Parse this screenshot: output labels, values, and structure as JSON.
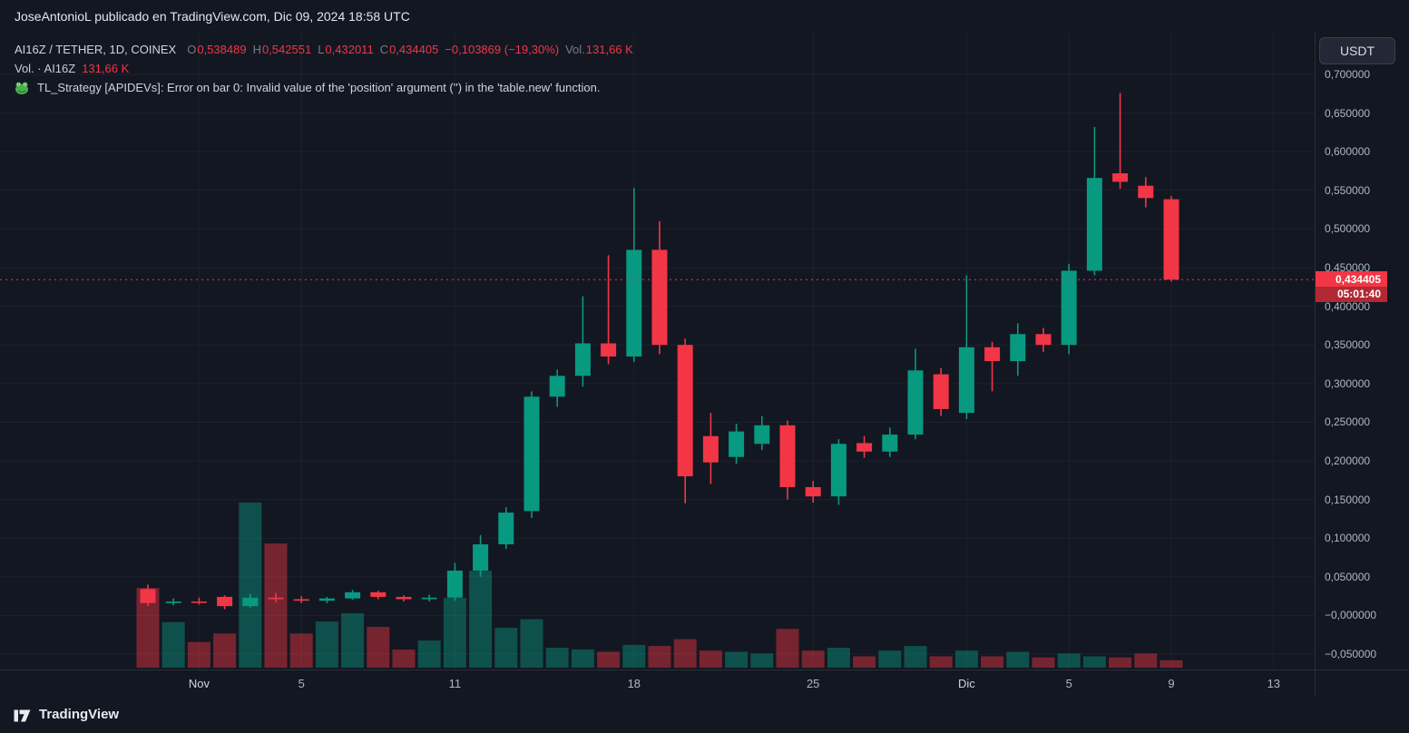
{
  "top_bar": {
    "published_text": "JoseAntonioL publicado en TradingView.com, Dic 09, 2024 18:58 UTC"
  },
  "legend": {
    "symbol_title": "AI16Z / TETHER, 1D, COINEX",
    "o_label": "O",
    "o_value": "0,538489",
    "h_label": "H",
    "h_value": "0,542551",
    "l_label": "L",
    "l_value": "0,432011",
    "c_label": "C",
    "c_value": "0,434405",
    "change_value": "−0,103869 (−19,30%)",
    "vol_label": "Vol.",
    "vol_value": "131,66 K",
    "indicator_label": "Vol. · AI16Z",
    "indicator_value": "131,66 K",
    "strategy_icon": "frog-icon",
    "strategy_text": "TL_Strategy [APIDEVs]: Error on bar 0: Invalid value of the 'position' argument ('') in the 'table.new' function."
  },
  "right_panel": {
    "currency_button": "USDT",
    "price_badge": {
      "price": "0,434405",
      "countdown": "05:01:40"
    }
  },
  "footer": {
    "brand": "TradingView"
  },
  "colors": {
    "up": "#089981",
    "down": "#f23645",
    "bg": "#131722",
    "text_primary": "#d1d4dc",
    "text_secondary": "#787b86",
    "axis_text": "#b2b5be",
    "border": "#2a2e39",
    "badge_bg": "#f23645",
    "badge_countdown_bg": "#b22834"
  },
  "chart_data": {
    "type": "candlestick",
    "symbol": "AI16Z / TETHER",
    "interval": "1D",
    "exchange": "COINEX",
    "quote_currency": "USDT",
    "last_price": 0.434405,
    "last_change": "−0,103869 (−19,30%)",
    "last_volume_k": 131.66,
    "y_axis": {
      "labels": [
        {
          "text": "0,700000",
          "value": 0.7
        },
        {
          "text": "0,650000",
          "value": 0.65
        },
        {
          "text": "0,600000",
          "value": 0.6
        },
        {
          "text": "0,550000",
          "value": 0.55
        },
        {
          "text": "0,500000",
          "value": 0.5
        },
        {
          "text": "0,450000",
          "value": 0.45
        },
        {
          "text": "0,400000",
          "value": 0.4
        },
        {
          "text": "0,350000",
          "value": 0.35
        },
        {
          "text": "0,300000",
          "value": 0.3
        },
        {
          "text": "0,250000",
          "value": 0.25
        },
        {
          "text": "0,200000",
          "value": 0.2
        },
        {
          "text": "0,150000",
          "value": 0.15
        },
        {
          "text": "0,100000",
          "value": 0.1
        },
        {
          "text": "0,050000",
          "value": 0.05
        },
        {
          "text": "−0,000000",
          "value": 0.0
        },
        {
          "text": "−0,050000",
          "value": -0.05
        }
      ]
    },
    "x_axis": {
      "ticks": [
        {
          "index": 2,
          "label": "Nov",
          "major": true
        },
        {
          "index": 6,
          "label": "5"
        },
        {
          "index": 12,
          "label": "11"
        },
        {
          "index": 19,
          "label": "18"
        },
        {
          "index": 26,
          "label": "25"
        },
        {
          "index": 32,
          "label": "Dic",
          "major": true
        },
        {
          "index": 36,
          "label": "5"
        },
        {
          "index": 40,
          "label": "9"
        },
        {
          "index": 44,
          "label": "13"
        }
      ]
    },
    "candles": [
      {
        "d": "30 Oct",
        "o": 0.034,
        "h": 0.04,
        "l": 0.012,
        "c": 0.016,
        "v": 1400
      },
      {
        "d": "31 Oct",
        "o": 0.016,
        "h": 0.022,
        "l": 0.013,
        "c": 0.018,
        "v": 800
      },
      {
        "d": "1 Nov",
        "o": 0.018,
        "h": 0.023,
        "l": 0.014,
        "c": 0.017,
        "v": 450
      },
      {
        "d": "2 Nov",
        "o": 0.024,
        "h": 0.026,
        "l": 0.008,
        "c": 0.012,
        "v": 600
      },
      {
        "d": "3 Nov",
        "o": 0.012,
        "h": 0.028,
        "l": 0.01,
        "c": 0.023,
        "v": 2900
      },
      {
        "d": "4 Nov",
        "o": 0.023,
        "h": 0.029,
        "l": 0.017,
        "c": 0.021,
        "v": 2180
      },
      {
        "d": "5 Nov",
        "o": 0.021,
        "h": 0.025,
        "l": 0.016,
        "c": 0.019,
        "v": 600
      },
      {
        "d": "6 Nov",
        "o": 0.019,
        "h": 0.024,
        "l": 0.016,
        "c": 0.022,
        "v": 810
      },
      {
        "d": "7 Nov",
        "o": 0.022,
        "h": 0.033,
        "l": 0.02,
        "c": 0.03,
        "v": 955
      },
      {
        "d": "8 Nov",
        "o": 0.03,
        "h": 0.032,
        "l": 0.021,
        "c": 0.024,
        "v": 715
      },
      {
        "d": "9 Nov",
        "o": 0.024,
        "h": 0.026,
        "l": 0.018,
        "c": 0.021,
        "v": 318
      },
      {
        "d": "10 Nov",
        "o": 0.021,
        "h": 0.027,
        "l": 0.018,
        "c": 0.023,
        "v": 477
      },
      {
        "d": "11 Nov",
        "o": 0.023,
        "h": 0.068,
        "l": 0.019,
        "c": 0.058,
        "v": 1225
      },
      {
        "d": "12 Nov",
        "o": 0.058,
        "h": 0.104,
        "l": 0.05,
        "c": 0.092,
        "v": 1700
      },
      {
        "d": "13 Nov",
        "o": 0.092,
        "h": 0.14,
        "l": 0.086,
        "c": 0.133,
        "v": 700
      },
      {
        "d": "14 Nov",
        "o": 0.135,
        "h": 0.29,
        "l": 0.126,
        "c": 0.283,
        "v": 850
      },
      {
        "d": "15 Nov",
        "o": 0.283,
        "h": 0.318,
        "l": 0.27,
        "c": 0.31,
        "v": 350
      },
      {
        "d": "16 Nov",
        "o": 0.31,
        "h": 0.413,
        "l": 0.296,
        "c": 0.352,
        "v": 320
      },
      {
        "d": "17 Nov",
        "o": 0.352,
        "h": 0.466,
        "l": 0.325,
        "c": 0.335,
        "v": 280
      },
      {
        "d": "18 Nov",
        "o": 0.335,
        "h": 0.553,
        "l": 0.328,
        "c": 0.473,
        "v": 400
      },
      {
        "d": "19 Nov",
        "o": 0.473,
        "h": 0.51,
        "l": 0.338,
        "c": 0.35,
        "v": 380
      },
      {
        "d": "20 Nov",
        "o": 0.35,
        "h": 0.358,
        "l": 0.145,
        "c": 0.18,
        "v": 500
      },
      {
        "d": "21 Nov",
        "o": 0.232,
        "h": 0.262,
        "l": 0.17,
        "c": 0.198,
        "v": 300
      },
      {
        "d": "22 Nov",
        "o": 0.205,
        "h": 0.248,
        "l": 0.196,
        "c": 0.238,
        "v": 280
      },
      {
        "d": "23 Nov",
        "o": 0.222,
        "h": 0.258,
        "l": 0.214,
        "c": 0.246,
        "v": 250
      },
      {
        "d": "24 Nov",
        "o": 0.246,
        "h": 0.252,
        "l": 0.15,
        "c": 0.166,
        "v": 680
      },
      {
        "d": "25 Nov",
        "o": 0.166,
        "h": 0.174,
        "l": 0.146,
        "c": 0.154,
        "v": 300
      },
      {
        "d": "26 Nov",
        "o": 0.154,
        "h": 0.228,
        "l": 0.143,
        "c": 0.222,
        "v": 350
      },
      {
        "d": "27 Nov",
        "o": 0.223,
        "h": 0.232,
        "l": 0.204,
        "c": 0.212,
        "v": 200
      },
      {
        "d": "28 Nov",
        "o": 0.212,
        "h": 0.243,
        "l": 0.205,
        "c": 0.234,
        "v": 300
      },
      {
        "d": "29 Nov",
        "o": 0.234,
        "h": 0.345,
        "l": 0.228,
        "c": 0.317,
        "v": 380
      },
      {
        "d": "30 Nov",
        "o": 0.312,
        "h": 0.32,
        "l": 0.258,
        "c": 0.267,
        "v": 200
      },
      {
        "d": "1 Dic",
        "o": 0.262,
        "h": 0.44,
        "l": 0.254,
        "c": 0.347,
        "v": 300
      },
      {
        "d": "2 Dic",
        "o": 0.347,
        "h": 0.354,
        "l": 0.29,
        "c": 0.329,
        "v": 200
      },
      {
        "d": "3 Dic",
        "o": 0.329,
        "h": 0.378,
        "l": 0.31,
        "c": 0.364,
        "v": 280
      },
      {
        "d": "4 Dic",
        "o": 0.364,
        "h": 0.372,
        "l": 0.341,
        "c": 0.35,
        "v": 180
      },
      {
        "d": "5 Dic",
        "o": 0.35,
        "h": 0.455,
        "l": 0.338,
        "c": 0.446,
        "v": 250
      },
      {
        "d": "6 Dic",
        "o": 0.446,
        "h": 0.632,
        "l": 0.44,
        "c": 0.566,
        "v": 200
      },
      {
        "d": "7 Dic",
        "o": 0.572,
        "h": 0.676,
        "l": 0.552,
        "c": 0.561,
        "v": 180
      },
      {
        "d": "8 Dic",
        "o": 0.556,
        "h": 0.567,
        "l": 0.528,
        "c": 0.54,
        "v": 250
      },
      {
        "d": "9 Dic",
        "o": 0.538489,
        "h": 0.542551,
        "l": 0.432011,
        "c": 0.434405,
        "v": 131.66
      }
    ]
  }
}
